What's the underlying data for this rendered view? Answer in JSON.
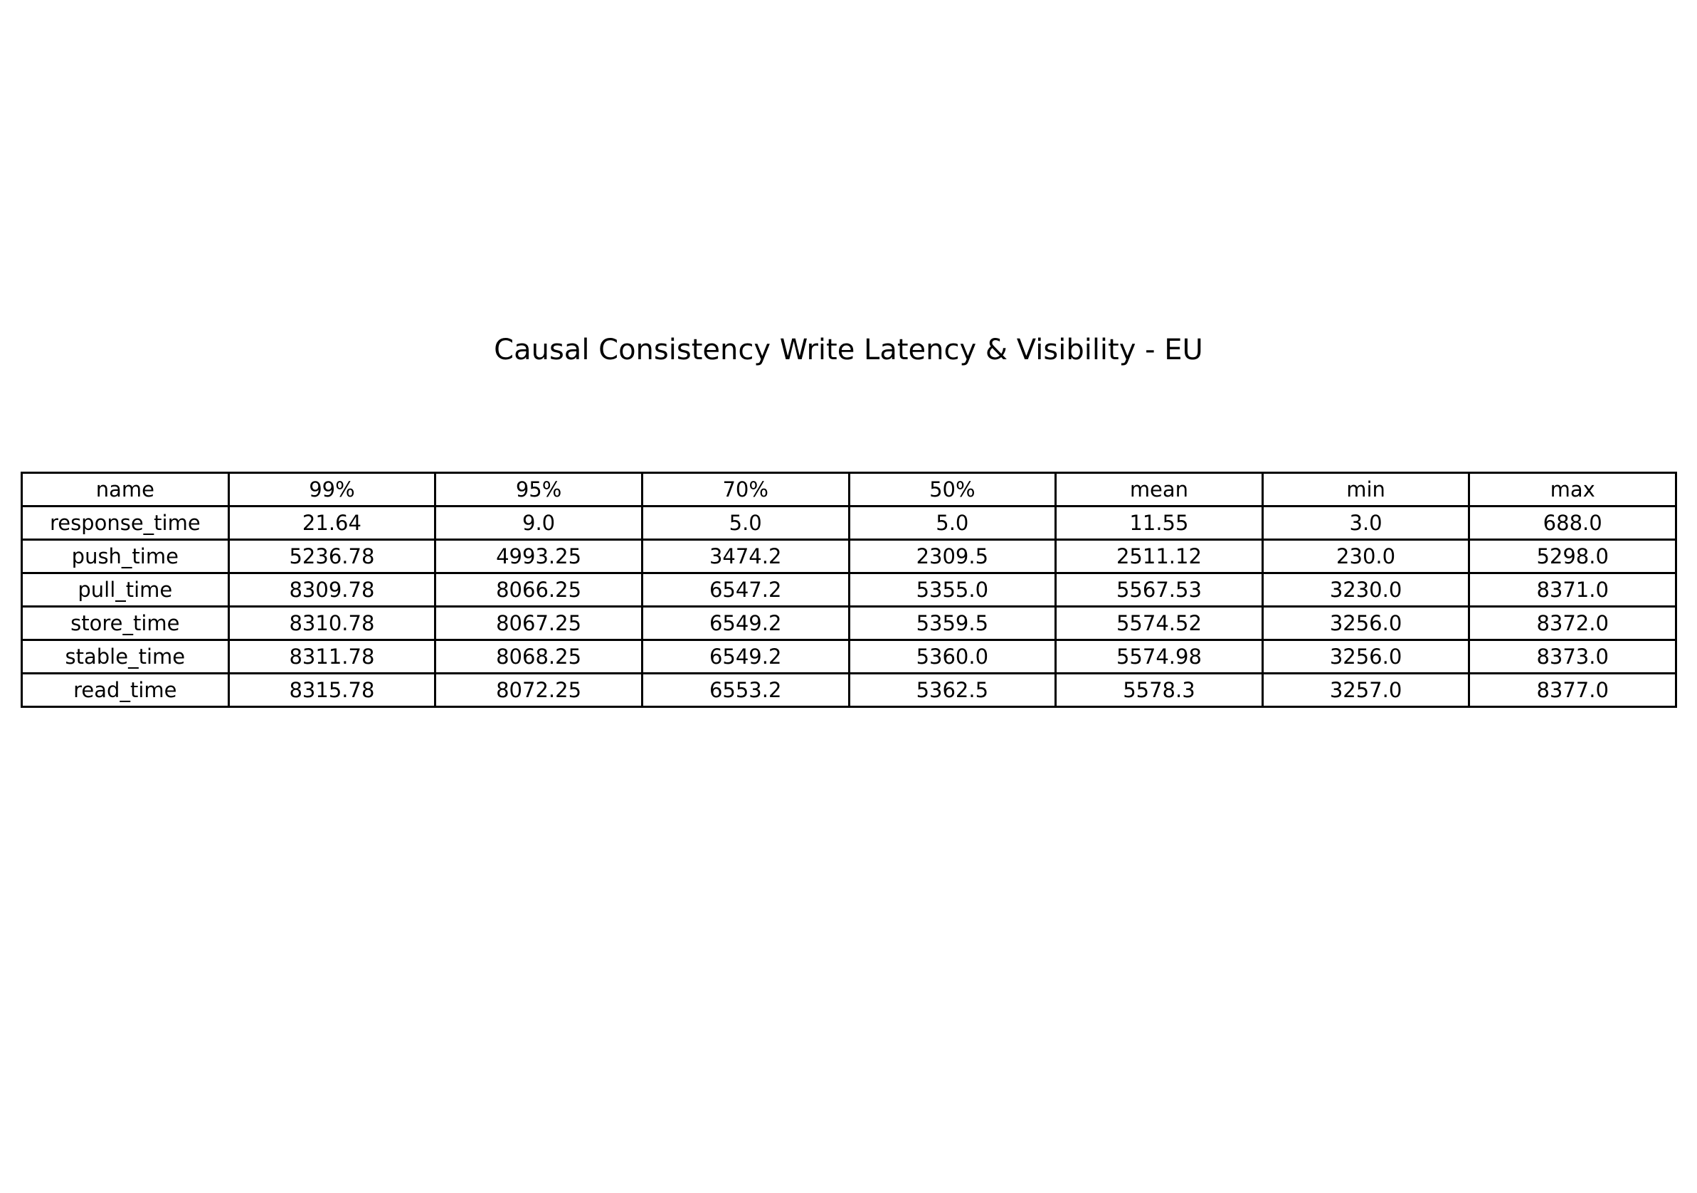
{
  "chart_data": {
    "type": "table",
    "title": "Causal Consistency Write Latency & Visibility - EU",
    "columns": [
      "name",
      "99%",
      "95%",
      "70%",
      "50%",
      "mean",
      "min",
      "max"
    ],
    "rows": [
      [
        "response_time",
        "21.64",
        "9.0",
        "5.0",
        "5.0",
        "11.55",
        "3.0",
        "688.0"
      ],
      [
        "push_time",
        "5236.78",
        "4993.25",
        "3474.2",
        "2309.5",
        "2511.12",
        "230.0",
        "5298.0"
      ],
      [
        "pull_time",
        "8309.78",
        "8066.25",
        "6547.2",
        "5355.0",
        "5567.53",
        "3230.0",
        "8371.0"
      ],
      [
        "store_time",
        "8310.78",
        "8067.25",
        "6549.2",
        "5359.5",
        "5574.52",
        "3256.0",
        "8372.0"
      ],
      [
        "stable_time",
        "8311.78",
        "8068.25",
        "6549.2",
        "5360.0",
        "5574.98",
        "3256.0",
        "8373.0"
      ],
      [
        "read_time",
        "8315.78",
        "8072.25",
        "6553.2",
        "5362.5",
        "5578.3",
        "3257.0",
        "8377.0"
      ]
    ]
  }
}
